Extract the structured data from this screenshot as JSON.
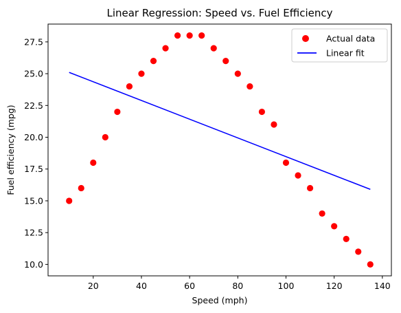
{
  "chart_data": {
    "type": "scatter",
    "title": "Linear Regression: Speed vs. Fuel Efficiency",
    "xlabel": "Speed (mph)",
    "ylabel": "Fuel efficiency (mpg)",
    "xlim": [
      1.25,
      143.75
    ],
    "ylim": [
      9.1,
      28.9
    ],
    "xticks": [
      20,
      40,
      60,
      80,
      100,
      120,
      140
    ],
    "yticks": [
      10.0,
      12.5,
      15.0,
      17.5,
      20.0,
      22.5,
      25.0,
      27.5
    ],
    "xtick_labels": [
      "20",
      "40",
      "60",
      "80",
      "100",
      "120",
      "140"
    ],
    "ytick_labels": [
      "10.0",
      "12.5",
      "15.0",
      "17.5",
      "20.0",
      "22.5",
      "25.0",
      "27.5"
    ],
    "grid": false,
    "legend_position": "top-right",
    "series": [
      {
        "name": "Actual data",
        "kind": "scatter",
        "color": "#ff0000",
        "x": [
          10,
          15,
          20,
          25,
          30,
          35,
          40,
          45,
          50,
          55,
          60,
          65,
          70,
          75,
          80,
          85,
          90,
          95,
          100,
          105,
          110,
          115,
          120,
          125,
          130,
          135
        ],
        "y": [
          15,
          16,
          18,
          20,
          22,
          24,
          25,
          26,
          27,
          28,
          28,
          28,
          27,
          26,
          25,
          24,
          22,
          21,
          18,
          17,
          16,
          14,
          13,
          12,
          11,
          10
        ]
      },
      {
        "name": "Linear fit",
        "kind": "line",
        "color": "#0000ff",
        "x": [
          10,
          135
        ],
        "y": [
          25.1,
          15.9
        ]
      }
    ]
  }
}
